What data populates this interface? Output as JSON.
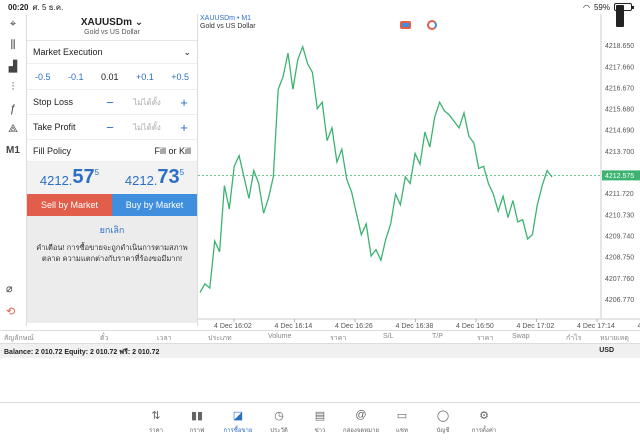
{
  "status": {
    "time": "00:20",
    "date": "ศ. 5 ธ.ค.",
    "battery": "59%",
    "battery_level": 0.59
  },
  "tools": [
    {
      "name": "crosshair-icon",
      "glyph": "⌖"
    },
    {
      "name": "chart-type-icon",
      "glyph": "⫼"
    },
    {
      "name": "indicators-icon",
      "glyph": "▟"
    },
    {
      "name": "settings-sliders-icon",
      "glyph": "⫶"
    },
    {
      "name": "function-icon",
      "glyph": "ƒ"
    },
    {
      "name": "objects-icon",
      "glyph": "⟁"
    },
    {
      "name": "timeframe-label",
      "glyph": "M1"
    }
  ],
  "order": {
    "symbol": "XAUUSDm",
    "symbol_desc": "Gold vs US Dollar",
    "execution": "Market Execution",
    "steps": [
      "-0.5",
      "-0.1",
      "0.01",
      "+0.1",
      "+0.5"
    ],
    "stop_loss_label": "Stop Loss",
    "take_profit_label": "Take Profit",
    "not_set": "ไม่ได้ตั้ง",
    "fill_policy_label": "Fill Policy",
    "fill_policy_value": "Fill or Kill",
    "bid": {
      "small": "4212.",
      "big": "57",
      "pip": "5"
    },
    "ask": {
      "small": "4212.",
      "big": "73",
      "pip": "5"
    },
    "sell_label": "Sell by Market",
    "buy_label": "Buy by Market",
    "cancel_label": "ยกเลิก",
    "warning": "คำเตือน! การซื้อขายจะถูกดำเนินการตามสภาพตลาด ความแตกต่างกับราคาที่ร้องขอมีมาก!"
  },
  "chart_data": {
    "type": "line",
    "title": "XAUUSDm • M1",
    "subtitle": "Gold vs US Dollar",
    "y_ticks": [
      "4218.650",
      "4217.660",
      "4216.670",
      "4215.680",
      "4214.690",
      "4213.700",
      "4212.575",
      "4211.720",
      "4210.730",
      "4209.740",
      "4208.750",
      "4207.760",
      "4206.770"
    ],
    "ylim": [
      4205.9,
      4219.1
    ],
    "x_ticks": [
      "4 Dec 16:02",
      "4 Dec 16:14",
      "4 Dec 16:26",
      "4 Dec 16:38",
      "4 Dec 16:50",
      "4 Dec 17:02",
      "4 Dec 17:14",
      "4 Dec 17:26"
    ],
    "current_price": 4212.575,
    "current_price_label": "4212.575",
    "line_color": "#3cb371",
    "values": [
      4207.1,
      4207.5,
      4207.3,
      4209.5,
      4209.0,
      4212.1,
      4211.0,
      4213.0,
      4213.5,
      4212.5,
      4211.5,
      4212.8,
      4212.2,
      4210.8,
      4211.5,
      4212.5,
      4216.6,
      4217.2,
      4218.3,
      4216.6,
      4218.0,
      4218.6,
      4217.8,
      4217.4,
      4215.7,
      4216.0,
      4214.2,
      4214.8,
      4213.2,
      4213.8,
      4212.4,
      4211.8,
      4210.8,
      4209.8,
      4210.3,
      4208.8,
      4209.1,
      4208.6,
      4209.6,
      4210.3,
      4211.7,
      4211.2,
      4212.5,
      4212.2,
      4213.6,
      4213.1,
      4214.6,
      4213.9,
      4215.3,
      4216.0,
      4215.6,
      4215.4,
      4215.1,
      4214.8,
      4215.5,
      4214.4,
      4214.1,
      4212.9,
      4213.0,
      4212.2,
      4211.7,
      4210.9,
      4211.6,
      4210.6,
      4211.4,
      4210.4,
      4210.5,
      4209.6,
      4209.8,
      4211.2,
      4212.1,
      4212.8,
      4212.5
    ]
  },
  "trade_columns": [
    "สัญลักษณ์",
    "ตั๋ว",
    "เวลา",
    "ประเภท",
    "Volume",
    "ราคา",
    "S/L",
    "T/P",
    "ราคา",
    "Swap",
    "กำไร",
    "หมายเหตุ"
  ],
  "balance_text": "Balance: 2 010.72 Equity: 2 010.72 ฟรี: 2 010.72",
  "currency": "USD",
  "nav": [
    {
      "name": "nav-quotes",
      "icon": "⇅",
      "label": "ราคา"
    },
    {
      "name": "nav-chart",
      "icon": "▮▮",
      "label": "กราฟ"
    },
    {
      "name": "nav-trade",
      "icon": "◪",
      "label": "การซื้อขาย",
      "active": true
    },
    {
      "name": "nav-history",
      "icon": "◷",
      "label": "ประวัติ"
    },
    {
      "name": "nav-news",
      "icon": "▤",
      "label": "ข่าว"
    },
    {
      "name": "nav-mailbox",
      "icon": "@",
      "label": "กล่องจดหมาย"
    },
    {
      "name": "nav-chat",
      "icon": "▭",
      "label": "แชท"
    },
    {
      "name": "nav-account",
      "icon": "◯",
      "label": "บัญชี"
    },
    {
      "name": "nav-settings",
      "icon": "⚙",
      "label": "การตั้งค่า"
    }
  ]
}
